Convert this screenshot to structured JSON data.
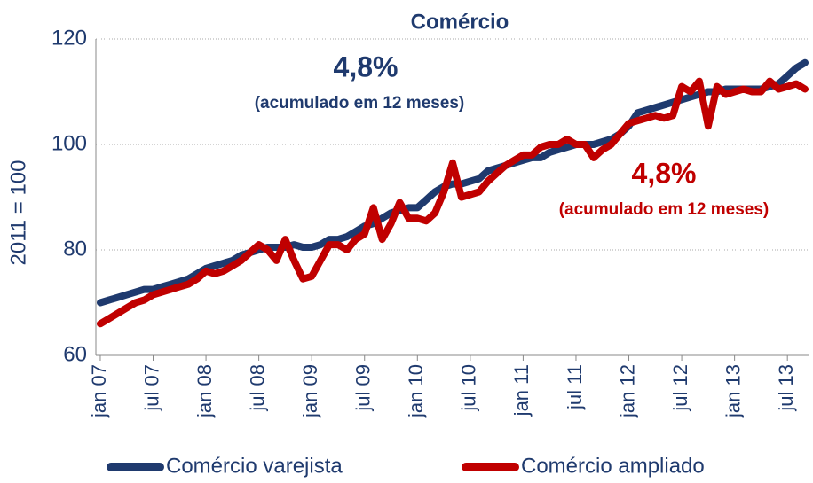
{
  "chart_data": {
    "type": "line",
    "title": "Comércio",
    "y_label": "2011 = 100",
    "annotations": [
      {
        "text": "4,8%",
        "subtext": "(acumulado em 12 meses)",
        "color": "#1f3a6e"
      },
      {
        "text": "4,8%",
        "subtext": "(acumulado em 12 meses)",
        "color": "#c00000"
      }
    ],
    "categories": [
      "jan 07",
      null,
      null,
      null,
      null,
      null,
      "jul 07",
      null,
      null,
      null,
      null,
      null,
      "jan 08",
      null,
      null,
      null,
      null,
      null,
      "jul 08",
      null,
      null,
      null,
      null,
      null,
      "jan 09",
      null,
      null,
      null,
      null,
      null,
      "jul 09",
      null,
      null,
      null,
      null,
      null,
      "jan 10",
      null,
      null,
      null,
      null,
      null,
      "jul 10",
      null,
      null,
      null,
      null,
      null,
      "jan 11",
      null,
      null,
      null,
      null,
      null,
      "jul 11",
      null,
      null,
      null,
      null,
      null,
      "jan 12",
      null,
      null,
      null,
      null,
      null,
      "jul 12",
      null,
      null,
      null,
      null,
      null,
      "jan 13",
      null,
      null,
      null,
      null,
      null,
      "jul 13",
      null,
      null
    ],
    "series": [
      {
        "name": "Comércio varejista",
        "color": "#1f3a6e",
        "values": [
          70,
          70.5,
          71,
          71.5,
          72,
          72.5,
          72.5,
          73,
          73.5,
          74,
          74.5,
          75.5,
          76.5,
          77,
          77.5,
          78,
          79,
          79.5,
          80,
          80.5,
          80.5,
          80.5,
          81,
          80.5,
          80.5,
          81,
          82,
          82,
          82.5,
          83.5,
          84.5,
          85,
          86,
          87,
          87.5,
          88,
          88,
          89.5,
          91,
          92,
          92.5,
          92.5,
          93,
          93.5,
          95,
          95.5,
          96,
          96.5,
          97,
          97.5,
          97.5,
          98.5,
          99,
          99.5,
          100,
          100,
          100,
          100.5,
          101,
          102,
          103.5,
          106,
          106.5,
          107,
          107.5,
          108,
          108.5,
          109,
          109.5,
          110,
          110,
          110.5,
          110.5,
          110.5,
          110.5,
          110.5,
          111,
          111.5,
          113,
          114.5,
          115.5
        ]
      },
      {
        "name": "Comércio ampliado",
        "color": "#c00000",
        "values": [
          66,
          67,
          68,
          69,
          70,
          70.5,
          71.5,
          72,
          72.5,
          73,
          73.5,
          74.5,
          76,
          75.5,
          76,
          77,
          78,
          79.5,
          81,
          80,
          78,
          82,
          78,
          74.5,
          75,
          78,
          81,
          81,
          80,
          82,
          83,
          88,
          82,
          85,
          89,
          86,
          86,
          85.5,
          87,
          91,
          96.5,
          90,
          90.5,
          91,
          93,
          94.5,
          96,
          97,
          98,
          98,
          99.5,
          100,
          100,
          101,
          100,
          100,
          97.5,
          99,
          100,
          102,
          104,
          104.5,
          105,
          105.5,
          105,
          105.5,
          111,
          110,
          112,
          103.5,
          111,
          109.5,
          110,
          110.5,
          110,
          110,
          112,
          110.5,
          111,
          111.5,
          110.5
        ]
      }
    ],
    "ylim": [
      60,
      120
    ],
    "yticks": [
      60,
      80,
      100,
      120
    ],
    "grid": true
  }
}
